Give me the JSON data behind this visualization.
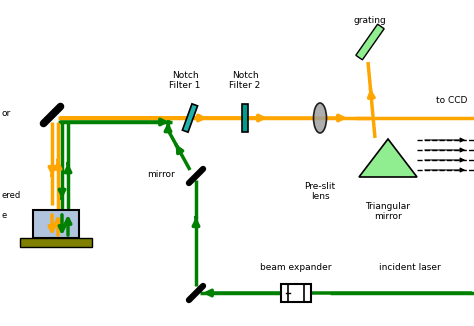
{
  "bg_color": "#ffffff",
  "orange_color": "#FFA500",
  "green_color": "#008000",
  "light_green": "#90EE90",
  "filter1_color": "#20B2AA",
  "filter2_color": "#009B8B",
  "lens_color": "#A0A0A0",
  "grating_color": "#90EE90",
  "sample_color": "#B0C4DE",
  "substrate_color": "#808000",
  "black": "#000000",
  "white": "#ffffff",
  "labels": {
    "notch1": "Notch\nFilter 1",
    "notch2": "Notch\nFilter 2",
    "preslit": "Pre-slit\nlens",
    "triangular": "Triangular\nmirror",
    "mirror": "mirror",
    "grating": "grating",
    "to_ccd": "to CCD",
    "beam_expander": "beam expander",
    "incident_laser": "incident laser",
    "or": "or",
    "ered": "ered",
    "e": "e"
  }
}
